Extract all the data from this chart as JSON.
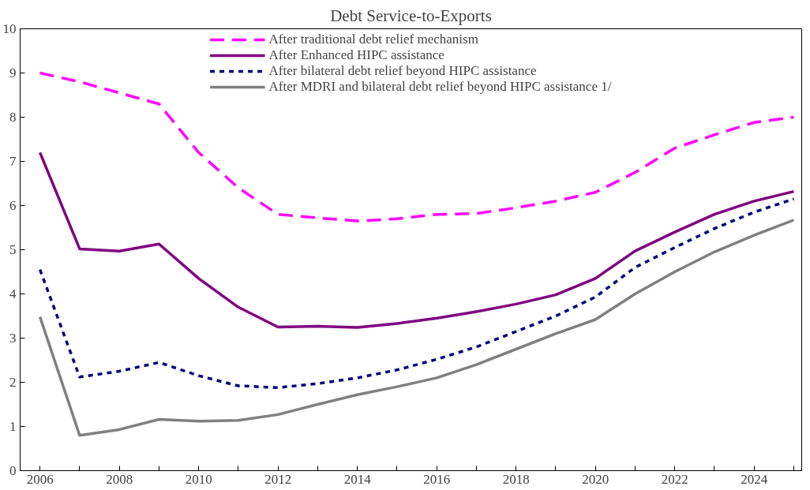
{
  "chart_data": {
    "type": "line",
    "title": "Debt Service-to-Exports",
    "x": [
      2006,
      2007,
      2008,
      2009,
      2010,
      2011,
      2012,
      2013,
      2014,
      2015,
      2016,
      2017,
      2018,
      2019,
      2020,
      2021,
      2022,
      2023,
      2024,
      2025
    ],
    "series": [
      {
        "name": "After traditional debt relief mechanism",
        "color": "#ff00ff",
        "line_style": "dashed",
        "values": [
          9.0,
          8.8,
          8.55,
          8.3,
          7.2,
          6.4,
          5.8,
          5.72,
          5.65,
          5.7,
          5.8,
          5.82,
          5.95,
          6.1,
          6.3,
          6.75,
          7.3,
          7.6,
          7.88,
          8.0
        ]
      },
      {
        "name": "After Enhanced HIPC assistance",
        "color": "#800080",
        "line_style": "solid",
        "values": [
          7.2,
          5.02,
          4.97,
          5.13,
          4.35,
          3.7,
          3.25,
          3.27,
          3.24,
          3.33,
          3.45,
          3.6,
          3.77,
          3.98,
          4.35,
          4.97,
          5.4,
          5.8,
          6.1,
          6.32
        ]
      },
      {
        "name": "After bilateral debt relief beyond HIPC assistance",
        "color": "#000080",
        "line_style": "dotted",
        "values": [
          4.55,
          2.12,
          2.25,
          2.45,
          2.15,
          1.92,
          1.88,
          1.97,
          2.1,
          2.28,
          2.52,
          2.8,
          3.15,
          3.5,
          3.93,
          4.6,
          5.05,
          5.48,
          5.85,
          6.15
        ]
      },
      {
        "name": "After MDRI and bilateral debt relief beyond HIPC assistance 1/",
        "color": "#808080",
        "line_style": "solid",
        "values": [
          3.48,
          0.8,
          0.93,
          1.16,
          1.12,
          1.14,
          1.27,
          1.5,
          1.72,
          1.9,
          2.1,
          2.4,
          2.75,
          3.1,
          3.42,
          4.0,
          4.5,
          4.95,
          5.33,
          5.67
        ]
      }
    ],
    "xlim": [
      2005.5,
      2025.2
    ],
    "xticks": [
      2006,
      {
        "value": 2007,
        "label": null
      },
      2008,
      {
        "value": 2009,
        "label": null
      },
      2010,
      {
        "value": 2011,
        "label": null
      },
      2012,
      {
        "value": 2013,
        "label": null
      },
      2014,
      {
        "value": 2015,
        "label": null
      },
      2016,
      {
        "value": 2017,
        "label": null
      },
      2018,
      {
        "value": 2019,
        "label": null
      },
      2020,
      {
        "value": 2021,
        "label": null
      },
      2022,
      {
        "value": 2023,
        "label": null
      },
      2024,
      {
        "value": 2025,
        "label": null
      }
    ],
    "ylim": [
      0,
      10
    ],
    "yticks": [
      0,
      1,
      2,
      3,
      4,
      5,
      6,
      7,
      8,
      9,
      10
    ],
    "grid": false,
    "legend": "top"
  }
}
